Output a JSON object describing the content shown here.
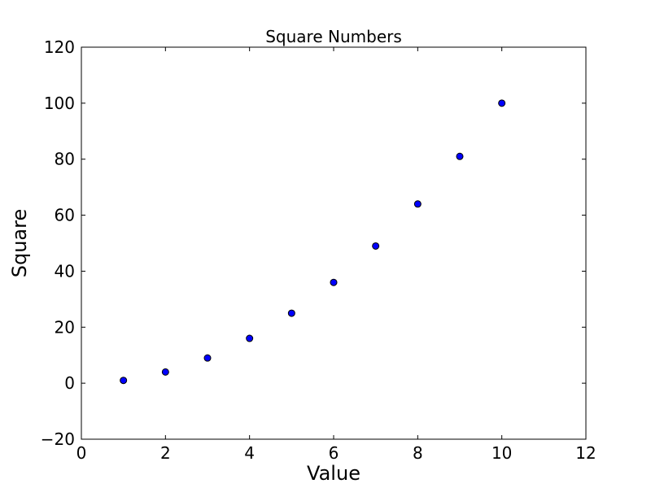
{
  "chart_data": {
    "type": "scatter",
    "title": "Square Numbers",
    "xlabel": "Value",
    "ylabel": "Square",
    "x": [
      1,
      2,
      3,
      4,
      5,
      6,
      7,
      8,
      9,
      10
    ],
    "y": [
      1,
      4,
      9,
      16,
      25,
      36,
      49,
      64,
      81,
      100
    ],
    "xlim": [
      0,
      12
    ],
    "ylim": [
      -20,
      120
    ],
    "xticks": [
      0,
      2,
      4,
      6,
      8,
      10,
      12
    ],
    "yticks": [
      -20,
      0,
      20,
      40,
      60,
      80,
      100,
      120
    ],
    "xtick_labels": [
      "0",
      "2",
      "4",
      "6",
      "8",
      "10",
      "12"
    ],
    "ytick_labels": [
      "−20",
      "0",
      "20",
      "40",
      "60",
      "80",
      "100",
      "120"
    ],
    "grid": false,
    "legend": null,
    "marker": {
      "shape": "circle",
      "fill_color": "#0000ff",
      "edge_color": "#000000"
    },
    "background_color": "#ffffff",
    "spine_color": "#000000",
    "tick_direction": "in"
  }
}
